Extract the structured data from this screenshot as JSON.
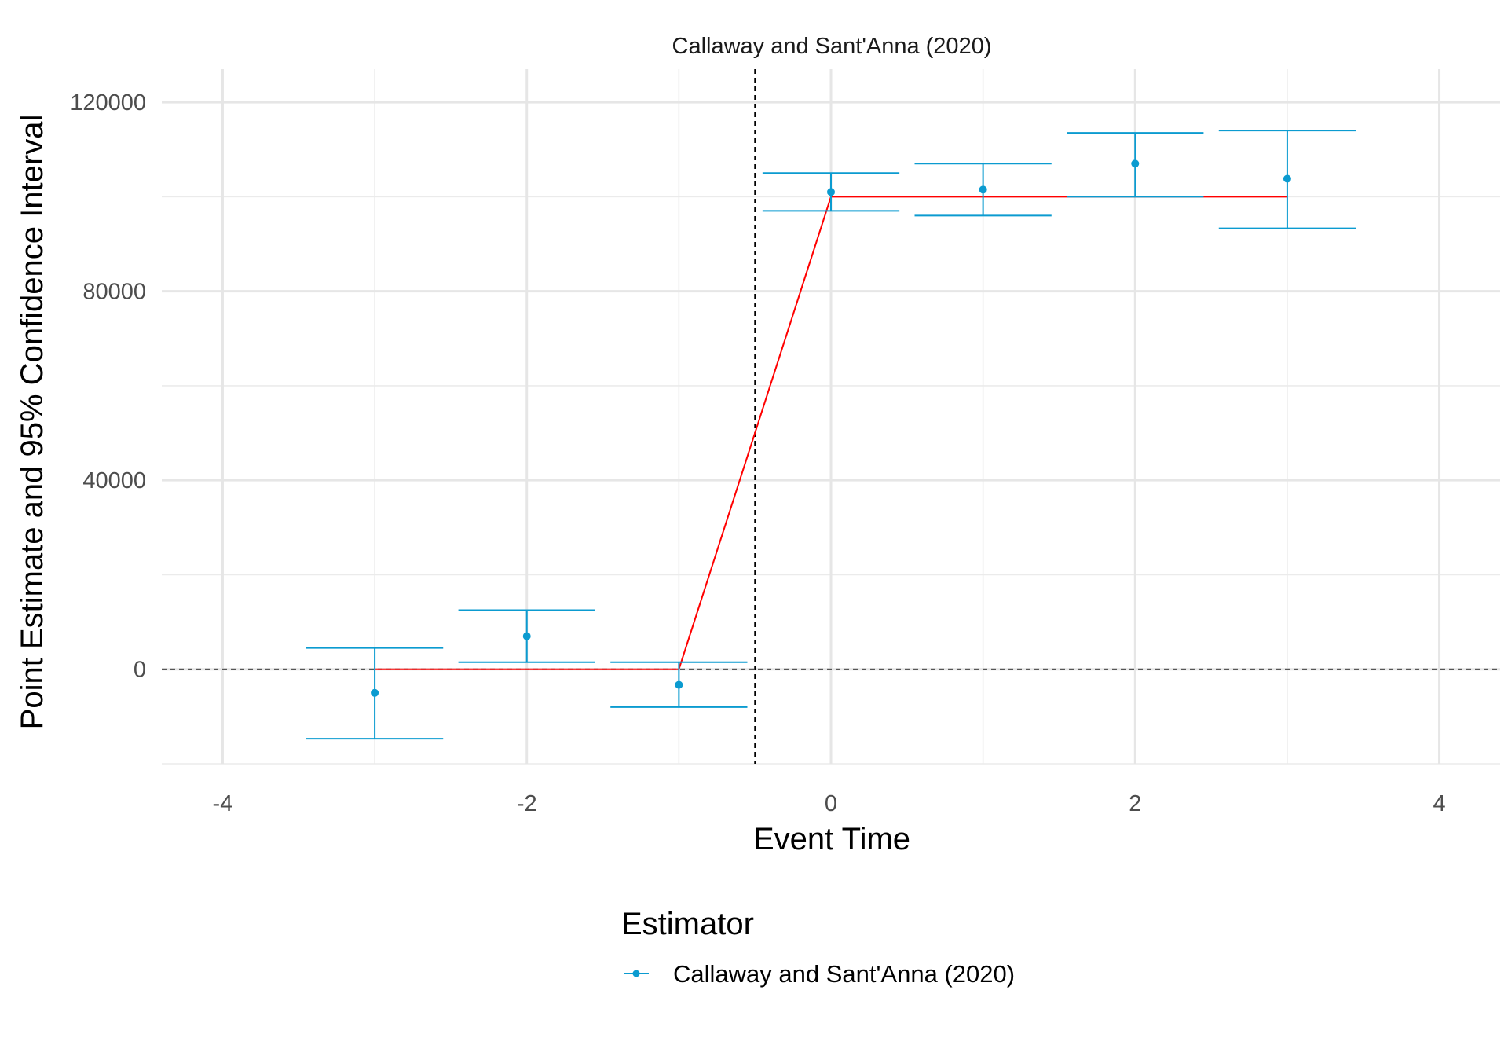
{
  "chart_data": {
    "type": "scatter",
    "title": "Callaway and Sant'Anna (2020)",
    "xlabel": "Event Time",
    "ylabel": "Point Estimate and 95% Confidence Interval",
    "xlim": [
      -4.4,
      4.4
    ],
    "ylim": [
      -20000,
      127000
    ],
    "x_ticks": [
      -4,
      -2,
      0,
      2,
      4
    ],
    "x_tick_labels": [
      "-4",
      "-2",
      "0",
      "2",
      "4"
    ],
    "y_ticks": [
      0,
      40000,
      80000,
      120000
    ],
    "y_tick_labels": [
      "0",
      "40000",
      "80000",
      "120000"
    ],
    "x_minor_ticks": [
      -3,
      -1,
      1,
      3
    ],
    "y_minor_ticks": [
      -20000,
      20000,
      60000,
      100000
    ],
    "grid": true,
    "reference_lines": {
      "hline_y": 0,
      "vline_x": -0.5
    },
    "series": [
      {
        "name": "Callaway and Sant'Anna (2020)",
        "color": "#0B9BD0",
        "x": [
          -3,
          -2,
          -1,
          0,
          1,
          2,
          3
        ],
        "y": [
          -5000,
          7000,
          -3300,
          101000,
          101500,
          107000,
          103800
        ],
        "ci_low": [
          -14700,
          1500,
          -8000,
          97000,
          96000,
          100000,
          93300
        ],
        "ci_high": [
          4500,
          12500,
          1500,
          105000,
          107000,
          113500,
          114000
        ],
        "error_bar_half_width": 0.45
      }
    ],
    "true_effect": {
      "color": "#FF0000",
      "x": [
        -3,
        -1,
        0,
        3
      ],
      "y": [
        0,
        0,
        100000,
        100000
      ]
    },
    "legend": {
      "title": "Estimator",
      "position": "bottom",
      "entries": [
        "Callaway and Sant'Anna (2020)"
      ]
    }
  }
}
